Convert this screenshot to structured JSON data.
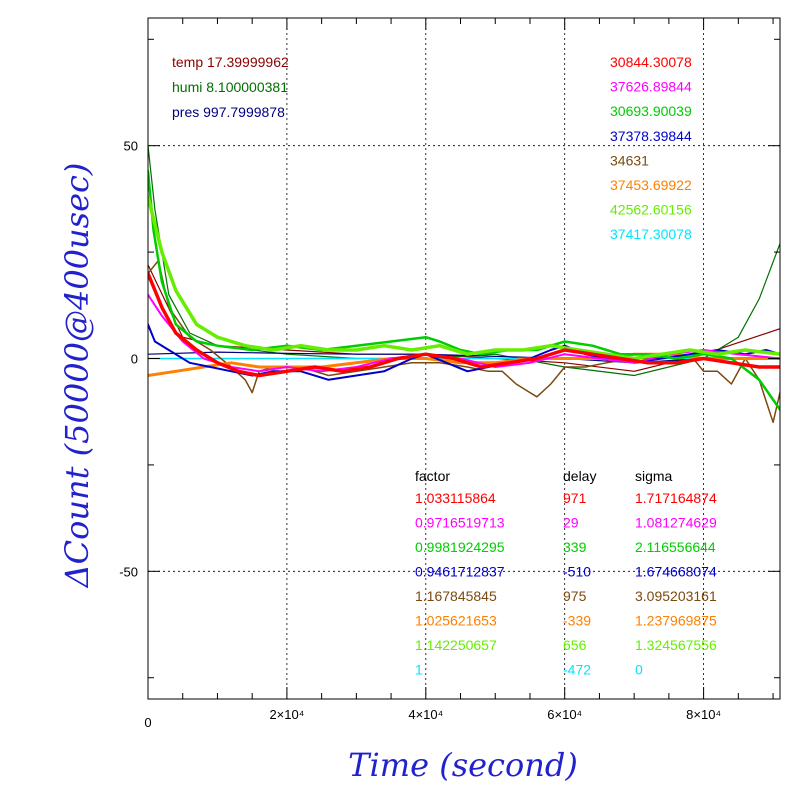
{
  "chart_data": {
    "type": "line",
    "xlabel": "Time (second)",
    "ylabel": "ΔCount (50000@400usec)",
    "xlim": [
      0,
      91000
    ],
    "ylim": [
      -80,
      80
    ],
    "x_ticks": [
      {
        "value": 0,
        "label": "0"
      },
      {
        "value": 20000,
        "label": "2×10⁴"
      },
      {
        "value": 40000,
        "label": "4×10⁴"
      },
      {
        "value": 60000,
        "label": "6×10⁴"
      },
      {
        "value": 80000,
        "label": "8×10⁴"
      }
    ],
    "y_ticks": [
      {
        "value": 50,
        "label": "50"
      },
      {
        "value": 0,
        "label": "0"
      },
      {
        "value": -50,
        "label": "-50"
      }
    ],
    "grid": true,
    "env": [
      {
        "name": "temp",
        "value": "17.39999962",
        "color": "#8b0000"
      },
      {
        "name": "humi",
        "value": "8.100000381",
        "color": "#007000"
      },
      {
        "name": "pres",
        "value": "997.7999878",
        "color": "#000080"
      }
    ],
    "means": [
      {
        "value": "30844.30078",
        "color": "#ff0000"
      },
      {
        "value": "37626.89844",
        "color": "#ff00ff"
      },
      {
        "value": "30693.90039",
        "color": "#00cc00"
      },
      {
        "value": "37378.39844",
        "color": "#0000cc"
      },
      {
        "value": "34631",
        "color": "#7a4a10"
      },
      {
        "value": "37453.69922",
        "color": "#ff8000"
      },
      {
        "value": "42562.60156",
        "color": "#66ee00"
      },
      {
        "value": "37417.30078",
        "color": "#00e5ff"
      }
    ],
    "stats_headers": [
      "factor",
      "delay",
      "sigma"
    ],
    "stats": [
      {
        "factor": "1.033115864",
        "delay": "971",
        "sigma": "1.717164874",
        "color": "#ff0000"
      },
      {
        "factor": "0.9716519713",
        "delay": "29",
        "sigma": "1.081274629",
        "color": "#ff00ff"
      },
      {
        "factor": "0.9981924295",
        "delay": "339",
        "sigma": "2.116556644",
        "color": "#00cc00"
      },
      {
        "factor": "0.9461712837",
        "delay": "-510",
        "sigma": "1.674668074",
        "color": "#0000cc"
      },
      {
        "factor": "1.167845845",
        "delay": "975",
        "sigma": "3.095203161",
        "color": "#7a4a10"
      },
      {
        "factor": "1.025621653",
        "delay": "-339",
        "sigma": "1.237969875",
        "color": "#ff8000"
      },
      {
        "factor": "1.142250657",
        "delay": "656",
        "sigma": "1.324567556",
        "color": "#66ee00"
      },
      {
        "factor": "1",
        "delay": "-472",
        "sigma": "0",
        "color": "#00e5ff"
      }
    ],
    "series": [
      {
        "color": "#8b0000",
        "width": 1.2,
        "x": [
          0,
          5000,
          10000,
          20000,
          30000,
          40000,
          50000,
          60000,
          70000,
          80000,
          91000
        ],
        "y": [
          22,
          5,
          3,
          2,
          1,
          1,
          0,
          -1,
          -3,
          1,
          7
        ]
      },
      {
        "color": "#007000",
        "width": 1.2,
        "x": [
          0,
          1000,
          3000,
          6000,
          10000,
          20000,
          30000,
          40000,
          50000,
          60000,
          70000,
          80000,
          85000,
          88000,
          91000
        ],
        "y": [
          50,
          35,
          15,
          6,
          3,
          1,
          0,
          0,
          1,
          -2,
          -4,
          0,
          5,
          14,
          27
        ]
      },
      {
        "color": "#000080",
        "width": 1.2,
        "x": [
          0,
          10000,
          20000,
          30000,
          40000,
          50000,
          60000,
          70000,
          80000,
          91000
        ],
        "y": [
          1,
          1.5,
          1.2,
          1,
          1,
          0.5,
          0,
          -1,
          0,
          0
        ]
      },
      {
        "color": "#00e5ff",
        "width": 1.5,
        "x": [
          0,
          91000
        ],
        "y": [
          0,
          0
        ]
      },
      {
        "color": "#7a4a10",
        "width": 1.5,
        "x": [
          0,
          1500,
          3000,
          6000,
          9000,
          12000,
          14000,
          15000,
          16000,
          18000,
          22000,
          26000,
          30000,
          34000,
          38000,
          42000,
          46000,
          49000,
          51000,
          53000,
          55000,
          56000,
          58000,
          59000,
          60000,
          63000,
          66000,
          70000,
          74000,
          78000,
          80000,
          82000,
          84000,
          86000,
          88000,
          89000,
          90000,
          91000
        ],
        "y": [
          20,
          23,
          12,
          5,
          2,
          -2,
          -5,
          -8,
          -3,
          -2,
          -2,
          -4,
          -3,
          -2,
          -1,
          -1,
          -2,
          -3,
          -3,
          -6,
          -8,
          -9,
          -6,
          -4,
          -2,
          -2,
          -1,
          0,
          0,
          1,
          -3,
          -3,
          -6,
          0,
          -5,
          -10,
          -15,
          -8
        ]
      },
      {
        "color": "#ff8000",
        "width": 3,
        "x": [
          0,
          4000,
          8000,
          12000,
          16000,
          20000,
          25000,
          30000,
          35000,
          40000,
          45000,
          50000,
          55000,
          60000,
          65000,
          70000,
          75000,
          80000,
          85000,
          91000
        ],
        "y": [
          -4,
          -3,
          -2,
          -1,
          -2,
          -2,
          -2,
          -1,
          0,
          0,
          -1,
          -1,
          0,
          0,
          0,
          1,
          1,
          0,
          0,
          0
        ]
      },
      {
        "color": "#0000cc",
        "width": 2,
        "x": [
          0,
          1000,
          3000,
          6000,
          9000,
          12000,
          15000,
          18000,
          22000,
          26000,
          30000,
          34000,
          38000,
          40000,
          43000,
          46000,
          49000,
          52000,
          55000,
          58000,
          60000,
          63000,
          66000,
          70000,
          74000,
          78000,
          82000,
          86000,
          89000,
          91000
        ],
        "y": [
          8,
          4,
          2,
          -1,
          -2,
          -3,
          -4,
          -3,
          -3,
          -5,
          -4,
          -3,
          0,
          1,
          -1,
          -3,
          -2,
          -1,
          0,
          2,
          3,
          1,
          0,
          -1,
          0,
          1,
          2,
          1,
          2,
          1
        ]
      },
      {
        "color": "#ff00ff",
        "width": 2,
        "x": [
          0,
          2000,
          5000,
          8000,
          12000,
          16000,
          20000,
          25000,
          30000,
          35000,
          40000,
          45000,
          50000,
          55000,
          60000,
          65000,
          70000,
          75000,
          80000,
          85000,
          91000
        ],
        "y": [
          15,
          10,
          4,
          0,
          -2,
          -3,
          -2,
          -3,
          -2,
          0,
          1,
          0,
          -2,
          -1,
          1,
          0,
          -1,
          1,
          2,
          1,
          0
        ]
      },
      {
        "color": "#00cc00",
        "width": 2.5,
        "x": [
          0,
          800,
          2000,
          4000,
          7000,
          10000,
          15000,
          20000,
          25000,
          30000,
          35000,
          40000,
          42000,
          45000,
          48000,
          52000,
          56000,
          60000,
          64000,
          68000,
          72000,
          76000,
          80000,
          84000,
          88000,
          91000
        ],
        "y": [
          44,
          30,
          18,
          8,
          4,
          3,
          2,
          3,
          2,
          3,
          4,
          5,
          4,
          2,
          1,
          2,
          2,
          4,
          3,
          1,
          1,
          0,
          1,
          0,
          -5,
          -12
        ]
      },
      {
        "color": "#66ee00",
        "width": 3.5,
        "x": [
          0,
          2000,
          4000,
          7000,
          10000,
          14000,
          18000,
          22000,
          26000,
          30000,
          34000,
          38000,
          42000,
          46000,
          50000,
          54000,
          58000,
          62000,
          66000,
          70000,
          74000,
          78000,
          82000,
          86000,
          91000
        ],
        "y": [
          38,
          25,
          16,
          8,
          5,
          3,
          2,
          3,
          2,
          2,
          3,
          2,
          3,
          1,
          2,
          2,
          3,
          2,
          1,
          0,
          1,
          2,
          1,
          2,
          1
        ]
      },
      {
        "color": "#ff0000",
        "width": 3.5,
        "x": [
          0,
          2000,
          4000,
          7000,
          10000,
          13000,
          16000,
          20000,
          24000,
          28000,
          32000,
          36000,
          40000,
          44000,
          48000,
          52000,
          56000,
          60000,
          64000,
          68000,
          72000,
          76000,
          80000,
          84000,
          88000,
          91000
        ],
        "y": [
          20,
          12,
          6,
          2,
          -1,
          -3,
          -4,
          -3,
          -2,
          -3,
          -2,
          0,
          1,
          0,
          -2,
          -1,
          0,
          2,
          1,
          0,
          -1,
          -1,
          0,
          -1,
          -2,
          -2
        ]
      }
    ]
  }
}
